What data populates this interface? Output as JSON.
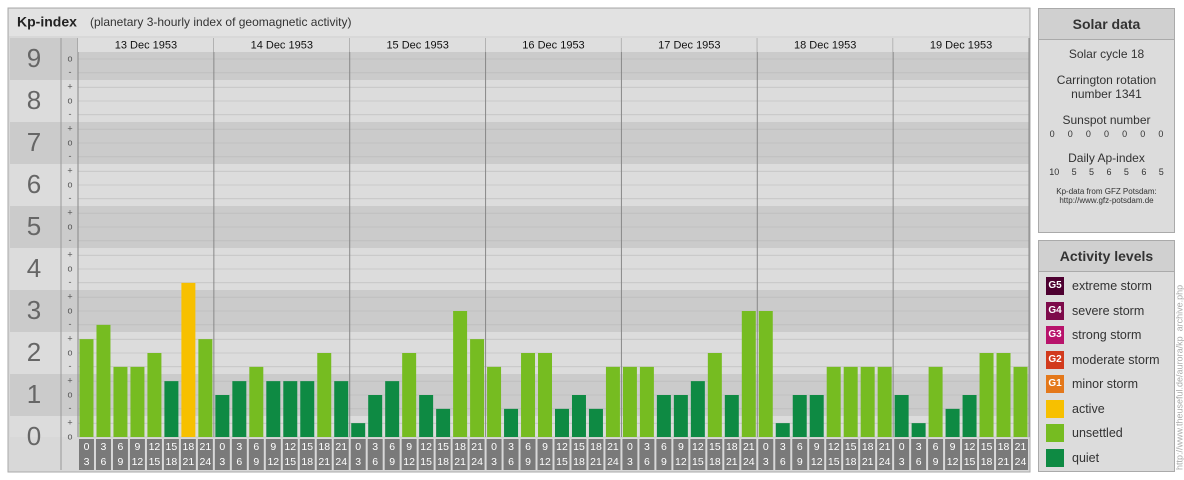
{
  "chart_data": {
    "type": "bar",
    "title": "Kp-index",
    "subtitle": "(planetary 3-hourly index of geomagnetic activity)",
    "categories": [
      "13 Dec 1953",
      "14 Dec 1953",
      "15 Dec 1953",
      "16 Dec 1953",
      "17 Dec 1953",
      "18 Dec 1953",
      "19 Dec 1953"
    ],
    "hours": [
      "0",
      "3",
      "6",
      "9",
      "12",
      "15",
      "18",
      "21",
      "24"
    ],
    "values": [
      [
        2.33,
        2.67,
        1.67,
        1.67,
        2,
        1.33,
        3.67,
        2.33
      ],
      [
        1,
        1.33,
        1.67,
        1.33,
        1.33,
        1.33,
        2,
        1.33
      ],
      [
        0.33,
        1,
        1.33,
        2,
        1,
        0.67,
        3,
        2.33
      ],
      [
        1.67,
        0.67,
        2,
        2,
        0.67,
        1,
        0.67,
        1.67
      ],
      [
        1.67,
        1.67,
        1,
        1,
        1.33,
        2,
        1,
        3
      ],
      [
        3,
        0.33,
        1,
        1,
        1.67,
        1.67,
        1.67,
        1.67
      ],
      [
        1,
        0.33,
        1.67,
        0.67,
        1,
        2,
        2,
        1.67
      ]
    ],
    "colors": [
      [
        "#76bc21",
        "#76bc21",
        "#76bc21",
        "#76bc21",
        "#76bc21",
        "#0e8a43",
        "#f7c000",
        "#76bc21"
      ],
      [
        "#0e8a43",
        "#0e8a43",
        "#76bc21",
        "#0e8a43",
        "#0e8a43",
        "#0e8a43",
        "#76bc21",
        "#0e8a43"
      ],
      [
        "#0e8a43",
        "#0e8a43",
        "#0e8a43",
        "#76bc21",
        "#0e8a43",
        "#0e8a43",
        "#76bc21",
        "#76bc21"
      ],
      [
        "#76bc21",
        "#0e8a43",
        "#76bc21",
        "#76bc21",
        "#0e8a43",
        "#0e8a43",
        "#0e8a43",
        "#76bc21"
      ],
      [
        "#76bc21",
        "#76bc21",
        "#0e8a43",
        "#0e8a43",
        "#0e8a43",
        "#76bc21",
        "#0e8a43",
        "#76bc21"
      ],
      [
        "#76bc21",
        "#0e8a43",
        "#0e8a43",
        "#0e8a43",
        "#76bc21",
        "#76bc21",
        "#76bc21",
        "#76bc21"
      ],
      [
        "#0e8a43",
        "#0e8a43",
        "#76bc21",
        "#0e8a43",
        "#0e8a43",
        "#76bc21",
        "#76bc21",
        "#76bc21"
      ]
    ],
    "ylim": [
      -0.5,
      9.5
    ],
    "yticks": [
      0,
      1,
      2,
      3,
      4,
      5,
      6,
      7,
      8,
      9
    ],
    "yticks_minor": [
      {
        "value": 0,
        "label": "o"
      },
      {
        "value": 0.33,
        "label": "+"
      },
      {
        "value": 0.67,
        "label": "-"
      },
      {
        "value": 1,
        "label": "o"
      },
      {
        "value": 1.33,
        "label": "+"
      },
      {
        "value": 1.67,
        "label": "-"
      },
      {
        "value": 2,
        "label": "o"
      },
      {
        "value": 2.33,
        "label": "+"
      },
      {
        "value": 2.67,
        "label": "-"
      },
      {
        "value": 3,
        "label": "o"
      },
      {
        "value": 3.33,
        "label": "+"
      },
      {
        "value": 3.67,
        "label": "-"
      },
      {
        "value": 4,
        "label": "o"
      },
      {
        "value": 4.33,
        "label": "+"
      },
      {
        "value": 4.67,
        "label": "-"
      },
      {
        "value": 5,
        "label": "o"
      },
      {
        "value": 5.33,
        "label": "+"
      },
      {
        "value": 5.67,
        "label": "-"
      },
      {
        "value": 6,
        "label": "o"
      },
      {
        "value": 6.33,
        "label": "+"
      },
      {
        "value": 6.67,
        "label": "-"
      },
      {
        "value": 7,
        "label": "o"
      },
      {
        "value": 7.33,
        "label": "+"
      },
      {
        "value": 7.67,
        "label": "-"
      },
      {
        "value": 8,
        "label": "o"
      },
      {
        "value": 8.33,
        "label": "+"
      },
      {
        "value": 8.67,
        "label": "-"
      },
      {
        "value": 9,
        "label": "o"
      }
    ],
    "grid": true
  },
  "solar_data": {
    "title": "Solar data",
    "solar_cycle": "Solar cycle 18",
    "carrington": "Carrington rotation number 1341",
    "sunspot_title": "Sunspot number",
    "sunspot_numbers": [
      0,
      0,
      0,
      0,
      0,
      0,
      0
    ],
    "ap_title": "Daily Ap-index",
    "ap_index": [
      10,
      5,
      5,
      6,
      5,
      6,
      5
    ],
    "source": "Kp-data from GFZ Potsdam:",
    "source_url": "http://www.gfz-potsdam.de"
  },
  "activity_levels": {
    "title": "Activity levels",
    "items": [
      {
        "badge": "G5",
        "label": "extreme storm",
        "color": "#4d0030"
      },
      {
        "badge": "G4",
        "label": "severe storm",
        "color": "#7d0a4a"
      },
      {
        "badge": "G3",
        "label": "strong storm",
        "color": "#b8136b"
      },
      {
        "badge": "G2",
        "label": "moderate storm",
        "color": "#d23a1c"
      },
      {
        "badge": "G1",
        "label": "minor storm",
        "color": "#e4781a"
      },
      {
        "badge": "",
        "label": "active",
        "color": "#f7c000"
      },
      {
        "badge": "",
        "label": "unsettled",
        "color": "#76bc21"
      },
      {
        "badge": "",
        "label": "quiet",
        "color": "#0e8a43"
      }
    ]
  },
  "side_url": "http://www.theuseful.de/aurora/kp_archive.php"
}
